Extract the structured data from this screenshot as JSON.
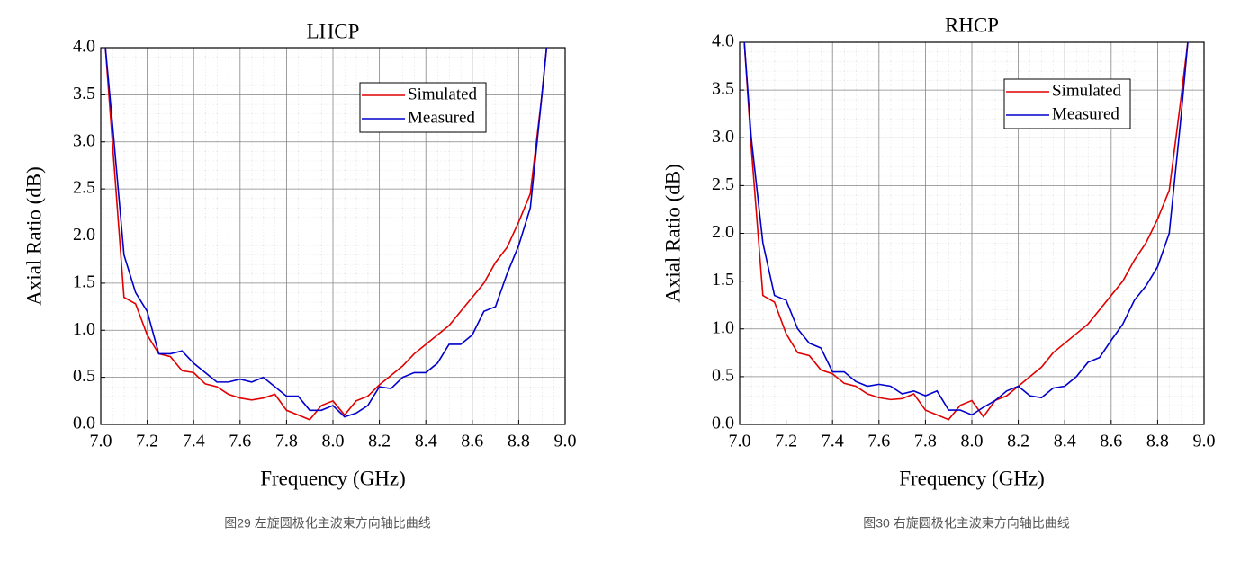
{
  "chart_data": [
    {
      "type": "line",
      "title": "LHCP",
      "x_label": "Frequency (GHz)",
      "y_label": "Axial Ratio (dB)",
      "caption": "图29 左旋圆极化主波束方向轴比曲线",
      "x": [
        7.02,
        7.05,
        7.1,
        7.15,
        7.2,
        7.25,
        7.3,
        7.35,
        7.4,
        7.45,
        7.5,
        7.55,
        7.6,
        7.65,
        7.7,
        7.75,
        7.8,
        7.85,
        7.9,
        7.95,
        8.0,
        8.05,
        8.1,
        8.15,
        8.2,
        8.25,
        8.3,
        8.35,
        8.4,
        8.45,
        8.5,
        8.55,
        8.6,
        8.65,
        8.7,
        8.75,
        8.8,
        8.85,
        8.9,
        8.92
      ],
      "series": [
        {
          "name": "Simulated",
          "color": "#e00000",
          "values": [
            4.0,
            3.0,
            1.35,
            1.28,
            0.95,
            0.75,
            0.72,
            0.57,
            0.55,
            0.43,
            0.4,
            0.32,
            0.28,
            0.26,
            0.28,
            0.32,
            0.15,
            0.1,
            0.05,
            0.2,
            0.25,
            0.1,
            0.25,
            0.3,
            0.42,
            0.52,
            0.62,
            0.75,
            0.85,
            0.95,
            1.05,
            1.2,
            1.35,
            1.5,
            1.72,
            1.88,
            2.15,
            2.45,
            3.5,
            4.0
          ]
        },
        {
          "name": "Measured",
          "color": "#0000cc",
          "values": [
            4.0,
            3.2,
            1.8,
            1.4,
            1.2,
            0.75,
            0.75,
            0.78,
            0.65,
            0.55,
            0.45,
            0.45,
            0.48,
            0.45,
            0.5,
            0.4,
            0.3,
            0.3,
            0.15,
            0.15,
            0.2,
            0.08,
            0.12,
            0.2,
            0.4,
            0.38,
            0.5,
            0.55,
            0.55,
            0.65,
            0.85,
            0.85,
            0.95,
            1.2,
            1.25,
            1.6,
            1.9,
            2.3,
            3.5,
            4.0
          ]
        }
      ],
      "xlim": [
        7,
        9
      ],
      "ylim": [
        0,
        4
      ],
      "xticks": [
        {
          "value": 7,
          "label": "7.0"
        },
        7.2,
        7.4,
        7.6,
        7.8,
        {
          "value": 8,
          "label": "8.0"
        },
        8.2,
        8.4,
        8.6,
        8.8,
        {
          "value": 9,
          "label": "9.0"
        }
      ],
      "yticks": [
        {
          "value": 0,
          "label": "0.0"
        },
        0.5,
        {
          "value": 1,
          "label": "1.0"
        },
        1.5,
        {
          "value": 2,
          "label": "2.0"
        },
        2.5,
        {
          "value": 3,
          "label": "3.0"
        },
        3.5,
        {
          "value": 4,
          "label": "4.0"
        }
      ],
      "grid": true,
      "legend": "upper right"
    },
    {
      "type": "line",
      "title": "RHCP",
      "x_label": "Frequency (GHz)",
      "y_label": "Axial Ratio (dB)",
      "caption": "图30 右旋圆极化主波束方向轴比曲线",
      "x": [
        7.02,
        7.05,
        7.1,
        7.15,
        7.2,
        7.25,
        7.3,
        7.35,
        7.4,
        7.45,
        7.5,
        7.55,
        7.6,
        7.65,
        7.7,
        7.75,
        7.8,
        7.85,
        7.9,
        7.95,
        8.0,
        8.05,
        8.1,
        8.15,
        8.2,
        8.25,
        8.3,
        8.35,
        8.4,
        8.45,
        8.5,
        8.55,
        8.6,
        8.65,
        8.7,
        8.75,
        8.8,
        8.85,
        8.9,
        8.93
      ],
      "series": [
        {
          "name": "Simulated",
          "color": "#e00000",
          "values": [
            4.0,
            2.9,
            1.35,
            1.28,
            0.95,
            0.75,
            0.72,
            0.57,
            0.53,
            0.43,
            0.4,
            0.32,
            0.28,
            0.26,
            0.27,
            0.32,
            0.15,
            0.1,
            0.05,
            0.2,
            0.25,
            0.08,
            0.25,
            0.3,
            0.4,
            0.5,
            0.6,
            0.75,
            0.85,
            0.95,
            1.05,
            1.2,
            1.35,
            1.5,
            1.72,
            1.9,
            2.15,
            2.45,
            3.4,
            4.0
          ]
        },
        {
          "name": "Measured",
          "color": "#0000cc",
          "values": [
            4.0,
            3.0,
            1.9,
            1.35,
            1.3,
            1.0,
            0.85,
            0.8,
            0.55,
            0.55,
            0.45,
            0.4,
            0.42,
            0.4,
            0.32,
            0.35,
            0.3,
            0.35,
            0.15,
            0.15,
            0.1,
            0.18,
            0.25,
            0.35,
            0.4,
            0.3,
            0.28,
            0.38,
            0.4,
            0.5,
            0.65,
            0.7,
            0.88,
            1.05,
            1.3,
            1.45,
            1.65,
            2.0,
            3.2,
            4.0
          ]
        }
      ],
      "xlim": [
        7,
        9
      ],
      "ylim": [
        0,
        4
      ],
      "xticks": [
        {
          "value": 7,
          "label": "7.0"
        },
        7.2,
        7.4,
        7.6,
        7.8,
        {
          "value": 8,
          "label": "8.0"
        },
        8.2,
        8.4,
        8.6,
        8.8,
        {
          "value": 9,
          "label": "9.0"
        }
      ],
      "yticks": [
        {
          "value": 0,
          "label": "0.0"
        },
        0.5,
        {
          "value": 1,
          "label": "1.0"
        },
        1.5,
        {
          "value": 2,
          "label": "2.0"
        },
        2.5,
        {
          "value": 3,
          "label": "3.0"
        },
        3.5,
        {
          "value": 4,
          "label": "4.0"
        }
      ],
      "grid": true,
      "legend": "upper right"
    }
  ]
}
